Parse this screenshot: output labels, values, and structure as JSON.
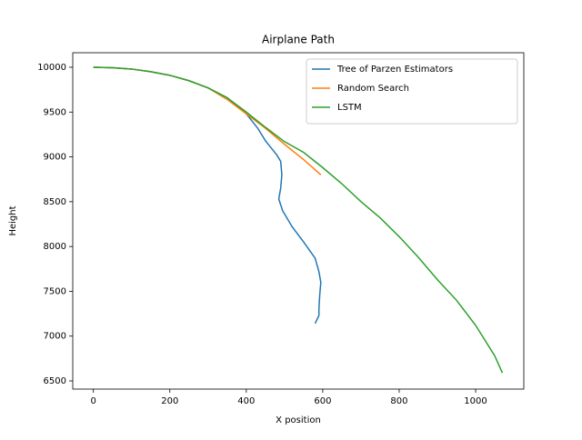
{
  "chart_data": {
    "type": "line",
    "title": "Airplane Path",
    "xlabel": "X position",
    "ylabel": "Height",
    "xlim": [
      -54,
      1126
    ],
    "ylim": [
      6409,
      10162
    ],
    "xticks": [
      0,
      200,
      400,
      600,
      800,
      1000
    ],
    "yticks": [
      6500,
      7000,
      7500,
      8000,
      8500,
      9000,
      9500,
      10000
    ],
    "legend": "upper right",
    "grid": false,
    "series": [
      {
        "name": "Tree of Parzen Estimators",
        "color": "#1f77b4",
        "x": [
          0,
          50,
          100,
          150,
          200,
          250,
          300,
          350,
          400,
          430,
          450,
          480,
          490,
          493,
          490,
          485,
          495,
          520,
          550,
          580,
          590,
          595,
          592,
          590,
          590,
          580
        ],
        "values": [
          10000,
          9995,
          9980,
          9950,
          9910,
          9850,
          9770,
          9660,
          9480,
          9320,
          9180,
          9020,
          8950,
          8800,
          8650,
          8530,
          8400,
          8220,
          8050,
          7870,
          7720,
          7600,
          7450,
          7300,
          7230,
          7140
        ]
      },
      {
        "name": "Random Search",
        "color": "#ff7f0e",
        "x": [
          0,
          50,
          100,
          150,
          200,
          250,
          300,
          350,
          400,
          450,
          500,
          550,
          595
        ],
        "values": [
          10000,
          9995,
          9980,
          9950,
          9910,
          9850,
          9770,
          9640,
          9480,
          9320,
          9140,
          8970,
          8800
        ]
      },
      {
        "name": "LSTM",
        "color": "#2ca02c",
        "x": [
          0,
          50,
          100,
          150,
          200,
          250,
          300,
          350,
          400,
          450,
          500,
          550,
          600,
          650,
          700,
          750,
          800,
          850,
          900,
          950,
          1000,
          1050,
          1070
        ],
        "values": [
          10000,
          9995,
          9980,
          9950,
          9910,
          9850,
          9770,
          9660,
          9500,
          9330,
          9170,
          9050,
          8880,
          8700,
          8500,
          8320,
          8110,
          7880,
          7630,
          7400,
          7120,
          6780,
          6590
        ]
      }
    ]
  }
}
